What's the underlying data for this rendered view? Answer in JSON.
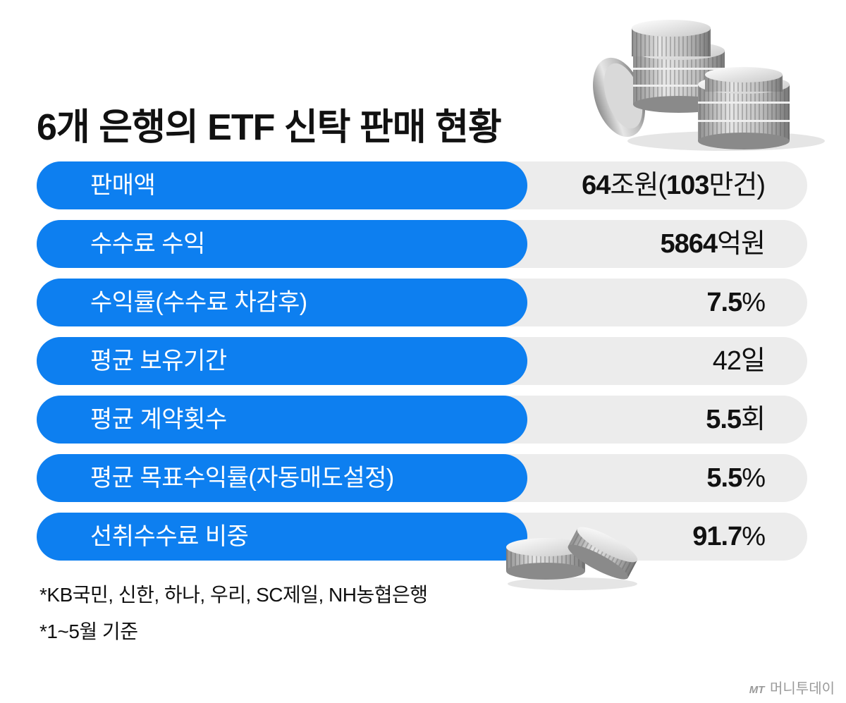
{
  "title": "6개 은행의 ETF 신탁 판매 현황",
  "rows": [
    {
      "label": "판매액",
      "value_bold": "64",
      "value_rest": "조원(",
      "value_bold2": "103",
      "value_rest2": "만건)"
    },
    {
      "label": "수수료 수익",
      "value_bold": "5864",
      "value_rest": "억원",
      "value_bold2": "",
      "value_rest2": ""
    },
    {
      "label": "수익률(수수료 차감후)",
      "value_bold": "7.5",
      "value_rest": "%",
      "value_bold2": "",
      "value_rest2": ""
    },
    {
      "label": "평균 보유기간",
      "value_bold": "",
      "value_rest": "42일",
      "value_bold2": "",
      "value_rest2": ""
    },
    {
      "label": "평균 계약횟수",
      "value_bold": "5.5",
      "value_rest": "회",
      "value_bold2": "",
      "value_rest2": ""
    },
    {
      "label": "평균 목표수익률(자동매도설정)",
      "value_bold": "5.5",
      "value_rest": "%",
      "value_bold2": "",
      "value_rest2": ""
    },
    {
      "label": "선취수수료 비중",
      "value_bold": "91.7",
      "value_rest": "%",
      "value_bold2": "",
      "value_rest2": ""
    }
  ],
  "notes": [
    "*KB국민, 신한, 하나, 우리, SC제일, NH농협은행",
    "*1~5월 기준"
  ],
  "logo": {
    "mark": "MT",
    "name": "머니투데이"
  },
  "colors": {
    "pill": "#0d7ff0",
    "row_bg": "#ececec",
    "text": "#111111",
    "logo": "#9a9a9a"
  },
  "icons": [
    "coin-stack-icon",
    "coin-pair-icon",
    "moneytoday-logo-icon"
  ]
}
